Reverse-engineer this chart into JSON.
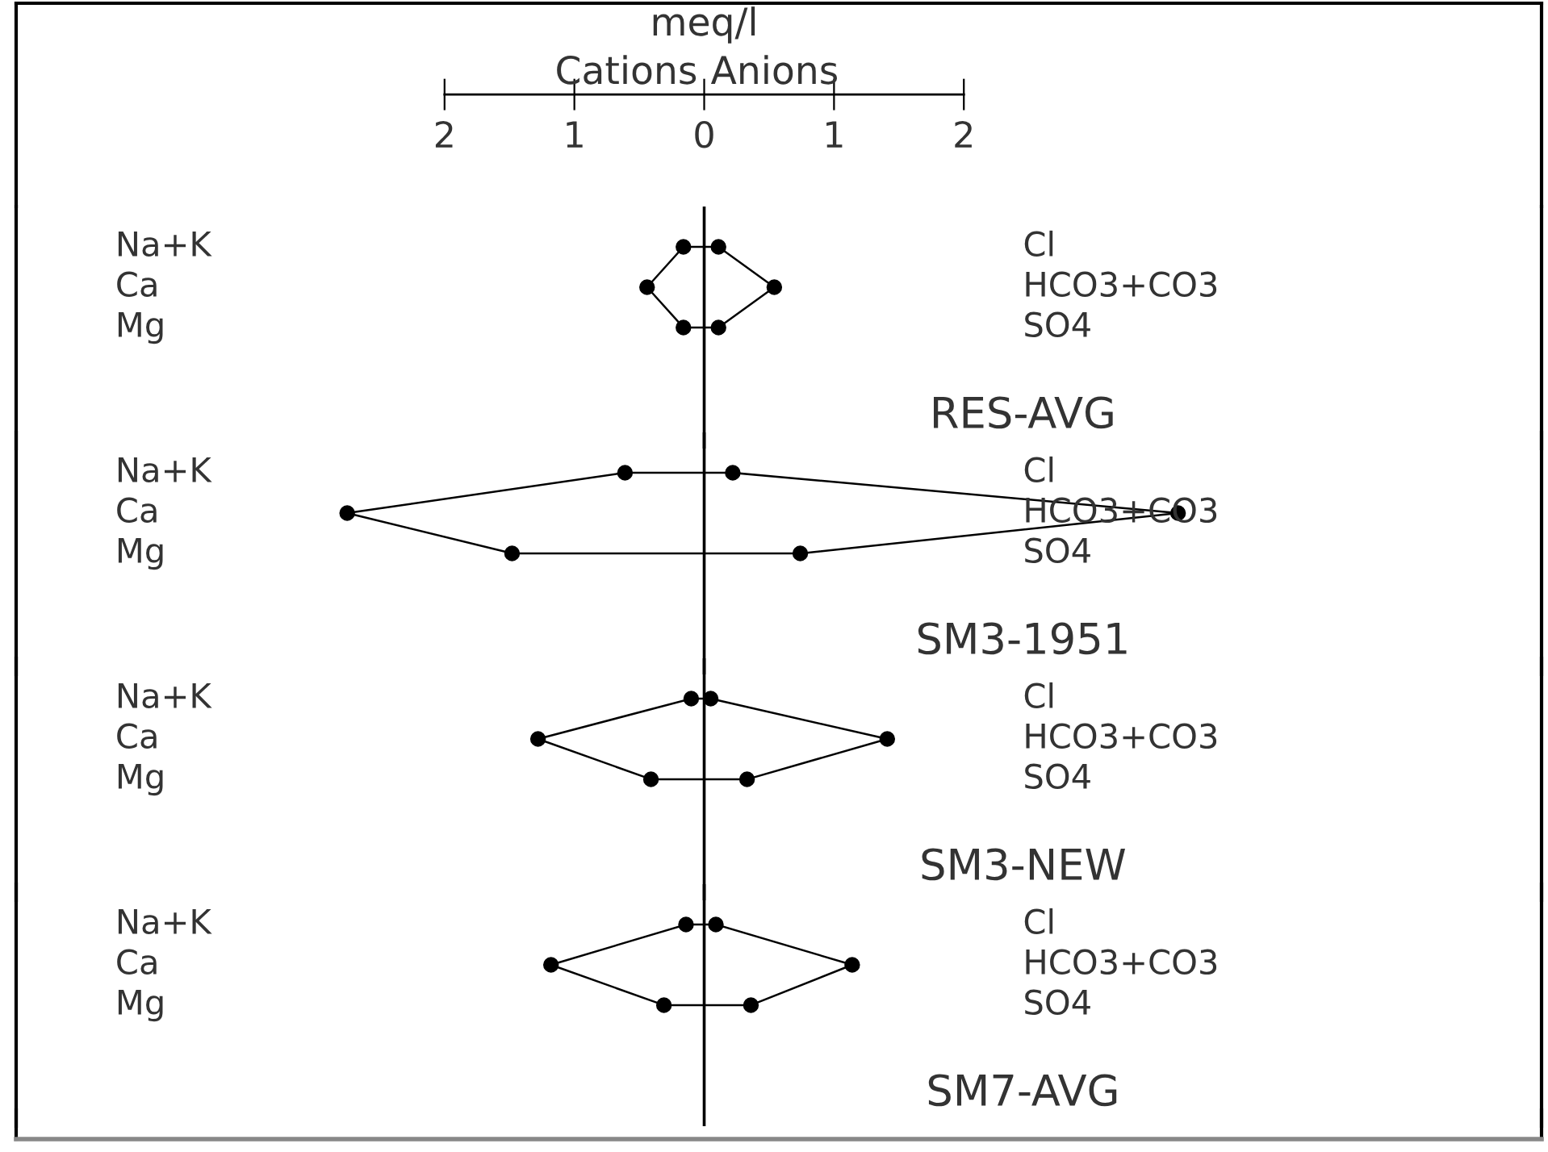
{
  "chart_data": [
    {
      "type": "line",
      "orientation": "horizontal",
      "title": "RES-AVG",
      "xlabel": "meq/l",
      "annotations": [
        "Cations",
        "Anions"
      ],
      "categories": [
        "Na+K",
        "Ca",
        "Mg"
      ],
      "y2_categories": [
        "Cl",
        "HCO3+CO3",
        "SO4"
      ],
      "series": [
        {
          "color": "#000000",
          "values": [
            -0.16,
            -0.44,
            -0.16
          ]
        },
        {
          "color": "#000000",
          "values": [
            0.11,
            0.54,
            0.11
          ]
        }
      ],
      "xlim": [
        -5.3,
        6.45
      ],
      "xticks": [
        {
          "value": -2,
          "label": "2"
        },
        {
          "value": -1,
          "label": "1"
        },
        0,
        1,
        2
      ],
      "ref_lines": [
        {
          "axis": "x",
          "value": 0,
          "color": "#000000"
        }
      ],
      "marker": "circle"
    },
    {
      "type": "line",
      "orientation": "horizontal",
      "title": "SM3-1951",
      "categories": [
        "Na+K",
        "Ca",
        "Mg"
      ],
      "y2_categories": [
        "Cl",
        "HCO3+CO3",
        "SO4"
      ],
      "series": [
        {
          "color": "#000000",
          "values": [
            -0.61,
            -2.75,
            -1.48
          ]
        },
        {
          "color": "#000000",
          "values": [
            0.22,
            3.65,
            0.74
          ]
        }
      ],
      "xlim": [
        -5.3,
        6.45
      ],
      "ref_lines": [
        {
          "axis": "x",
          "value": 0,
          "color": "#000000"
        }
      ],
      "marker": "circle",
      "tick_labels": "y"
    },
    {
      "type": "line",
      "orientation": "horizontal",
      "title": "SM3-NEW",
      "categories": [
        "Na+K",
        "Ca",
        "Mg"
      ],
      "y2_categories": [
        "Cl",
        "HCO3+CO3",
        "SO4"
      ],
      "series": [
        {
          "color": "#000000",
          "values": [
            -0.1,
            -1.28,
            -0.41
          ]
        },
        {
          "color": "#000000",
          "values": [
            0.05,
            1.41,
            0.33
          ]
        }
      ],
      "xlim": [
        -5.3,
        6.45
      ],
      "ref_lines": [
        {
          "axis": "x",
          "value": 0,
          "color": "#000000"
        }
      ],
      "marker": "circle",
      "tick_labels": "y"
    },
    {
      "type": "line",
      "orientation": "horizontal",
      "title": "SM7-AVG",
      "categories": [
        "Na+K",
        "Ca",
        "Mg"
      ],
      "y2_categories": [
        "Cl",
        "HCO3+CO3",
        "SO4"
      ],
      "series": [
        {
          "color": "#000000",
          "values": [
            -0.14,
            -1.18,
            -0.31
          ]
        },
        {
          "color": "#000000",
          "values": [
            0.09,
            1.14,
            0.36
          ]
        }
      ],
      "xlim": [
        -5.3,
        6.45
      ],
      "ref_lines": [
        {
          "axis": "x",
          "value": 0,
          "color": "#000000"
        }
      ],
      "marker": "circle",
      "tick_labels": "y"
    }
  ]
}
